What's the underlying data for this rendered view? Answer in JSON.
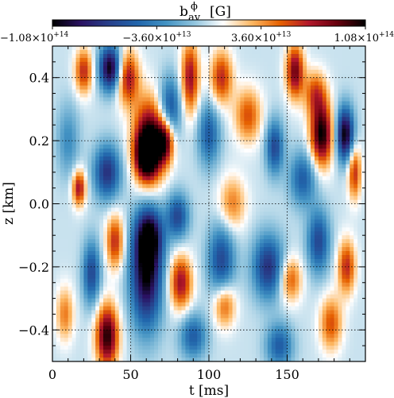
{
  "chart_data": {
    "type": "heatmap",
    "title": "b",
    "title_sup": "ϕ",
    "title_sub": "av",
    "title_unit": "[G]",
    "xlabel": "t [ms]",
    "ylabel": "z [km]",
    "xlim": [
      0,
      200
    ],
    "ylim": [
      -0.5,
      0.5
    ],
    "x_ticks": [
      0,
      50,
      100,
      150
    ],
    "x_tick_labels": [
      "0",
      "50",
      "100",
      "150"
    ],
    "y_ticks": [
      -0.4,
      -0.2,
      0.0,
      0.2,
      0.4
    ],
    "y_tick_labels": [
      "−0.4",
      "−0.2",
      "0.0",
      "0.2",
      "0.4"
    ],
    "grid": true,
    "colorbar": {
      "position": "top",
      "range": [
        -108000000000000.0,
        108000000000000.0
      ],
      "ticks": [
        -108000000000000.0,
        -36000000000000.0,
        36000000000000.0,
        108000000000000.0
      ],
      "tick_labels": [
        {
          "mant": "−1.08×10",
          "exp": "+14"
        },
        {
          "mant": "−3.60×10",
          "exp": "+13"
        },
        {
          "mant": "3.60×10",
          "exp": "+13"
        },
        {
          "mant": "1.08×10",
          "exp": "+14"
        }
      ],
      "colors": [
        "#000000",
        "#2a1262",
        "#27408b",
        "#2166ac",
        "#4393c3",
        "#92c5de",
        "#ffffff",
        "#fdb863",
        "#e66101",
        "#b2182b",
        "#67000d",
        "#000000"
      ]
    },
    "features": [
      {
        "t": 37,
        "z": 0.43,
        "v": -1.0,
        "st": 5,
        "sz": 0.05
      },
      {
        "t": 35,
        "z": 0.1,
        "v": -0.7,
        "st": 6,
        "sz": 0.06
      },
      {
        "t": 20,
        "z": 0.42,
        "v": 0.6,
        "st": 4,
        "sz": 0.05
      },
      {
        "t": 48,
        "z": 0.4,
        "v": 0.7,
        "st": 5,
        "sz": 0.06
      },
      {
        "t": 62,
        "z": 0.2,
        "v": 1.0,
        "st": 7,
        "sz": 0.09
      },
      {
        "t": 60,
        "z": 0.15,
        "v": 0.8,
        "st": 5,
        "sz": 0.05
      },
      {
        "t": 72,
        "z": 0.2,
        "v": 0.8,
        "st": 4,
        "sz": 0.05
      },
      {
        "t": 88,
        "z": 0.4,
        "v": 0.7,
        "st": 4,
        "sz": 0.08
      },
      {
        "t": 75,
        "z": 0.3,
        "v": -0.6,
        "st": 5,
        "sz": 0.07
      },
      {
        "t": 108,
        "z": 0.4,
        "v": 0.6,
        "st": 5,
        "sz": 0.06
      },
      {
        "t": 100,
        "z": 0.22,
        "v": -0.5,
        "st": 5,
        "sz": 0.07
      },
      {
        "t": 155,
        "z": 0.42,
        "v": 0.8,
        "st": 4,
        "sz": 0.06
      },
      {
        "t": 168,
        "z": 0.35,
        "v": 0.5,
        "st": 5,
        "sz": 0.05
      },
      {
        "t": 172,
        "z": 0.22,
        "v": 1.0,
        "st": 5,
        "sz": 0.07
      },
      {
        "t": 187,
        "z": 0.22,
        "v": -1.0,
        "st": 4,
        "sz": 0.06
      },
      {
        "t": 193,
        "z": 0.1,
        "v": 0.6,
        "st": 3,
        "sz": 0.06
      },
      {
        "t": 160,
        "z": 0.08,
        "v": -0.5,
        "st": 6,
        "sz": 0.06
      },
      {
        "t": 125,
        "z": 0.28,
        "v": 0.5,
        "st": 6,
        "sz": 0.06
      },
      {
        "t": 142,
        "z": 0.18,
        "v": -0.6,
        "st": 4,
        "sz": 0.06
      },
      {
        "t": 17,
        "z": 0.05,
        "v": 0.7,
        "st": 3,
        "sz": 0.04
      },
      {
        "t": 10,
        "z": 0.2,
        "v": -0.3,
        "st": 5,
        "sz": 0.08
      },
      {
        "t": 115,
        "z": 0.0,
        "v": 0.4,
        "st": 6,
        "sz": 0.06
      },
      {
        "t": 60,
        "z": -0.22,
        "v": -1.0,
        "st": 7,
        "sz": 0.12
      },
      {
        "t": 62,
        "z": -0.1,
        "v": -0.7,
        "st": 6,
        "sz": 0.06
      },
      {
        "t": 80,
        "z": -0.04,
        "v": -0.6,
        "st": 5,
        "sz": 0.05
      },
      {
        "t": 40,
        "z": -0.12,
        "v": 0.6,
        "st": 4,
        "sz": 0.06
      },
      {
        "t": 25,
        "z": -0.22,
        "v": -0.6,
        "st": 4,
        "sz": 0.07
      },
      {
        "t": 35,
        "z": -0.42,
        "v": 0.95,
        "st": 5,
        "sz": 0.07
      },
      {
        "t": 82,
        "z": -0.25,
        "v": 0.7,
        "st": 5,
        "sz": 0.06
      },
      {
        "t": 108,
        "z": -0.18,
        "v": -0.6,
        "st": 6,
        "sz": 0.08
      },
      {
        "t": 138,
        "z": -0.2,
        "v": -0.7,
        "st": 7,
        "sz": 0.07
      },
      {
        "t": 152,
        "z": -0.24,
        "v": 0.5,
        "st": 5,
        "sz": 0.05
      },
      {
        "t": 170,
        "z": -0.12,
        "v": -0.6,
        "st": 5,
        "sz": 0.07
      },
      {
        "t": 188,
        "z": -0.2,
        "v": 0.6,
        "st": 4,
        "sz": 0.06
      },
      {
        "t": 110,
        "z": -0.32,
        "v": 0.5,
        "st": 5,
        "sz": 0.05
      },
      {
        "t": 178,
        "z": -0.38,
        "v": 0.5,
        "st": 5,
        "sz": 0.06
      },
      {
        "t": 145,
        "z": -0.45,
        "v": -0.5,
        "st": 6,
        "sz": 0.05
      },
      {
        "t": 90,
        "z": -0.42,
        "v": -0.5,
        "st": 6,
        "sz": 0.05
      },
      {
        "t": 8,
        "z": -0.35,
        "v": 0.4,
        "st": 4,
        "sz": 0.06
      }
    ]
  }
}
